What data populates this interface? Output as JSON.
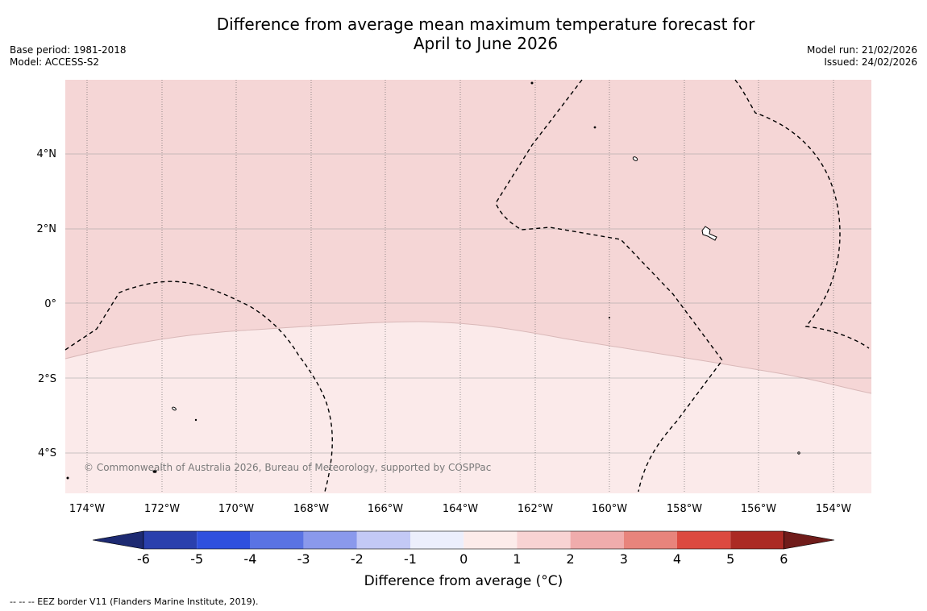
{
  "title_line1": "Difference from average mean maximum temperature forecast for",
  "title_line2": "April to June 2026",
  "meta_left": {
    "base_period": "Base period: 1981-2018",
    "model": "Model: ACCESS-S2"
  },
  "meta_right": {
    "model_run": "Model run: 21/02/2026",
    "issued": "Issued: 24/02/2026"
  },
  "map": {
    "lat_labels": [
      "4°N",
      "2°N",
      "0°",
      "2°S",
      "4°S"
    ],
    "lon_labels": [
      "174°W",
      "172°W",
      "170°W",
      "168°W",
      "166°W",
      "164°W",
      "162°W",
      "160°W",
      "158°W",
      "156°W",
      "154°W"
    ],
    "copyright": "© Commonwealth of Australia 2026, Bureau of Meteorology, supported by COSPPac",
    "colors": {
      "anomaly_1_to_2": "#f5d6d6",
      "anomaly_0_to_1": "#fbeaea",
      "grid": "#999999",
      "eez_line": "#000000"
    }
  },
  "colorbar": {
    "title": "Difference from average (°C)",
    "tick_labels": [
      "-6",
      "-5",
      "-4",
      "-3",
      "-2",
      "-1",
      "0",
      "1",
      "2",
      "3",
      "4",
      "5",
      "6"
    ],
    "bins": [
      {
        "range": "< -6",
        "color": "#1d2a72"
      },
      {
        "range": "-6 to -5",
        "color": "#2a40ad"
      },
      {
        "range": "-5 to -4",
        "color": "#2f50de"
      },
      {
        "range": "-4 to -3",
        "color": "#5a73e3"
      },
      {
        "range": "-3 to -2",
        "color": "#8a99ec"
      },
      {
        "range": "-2 to -1",
        "color": "#c3c9f6"
      },
      {
        "range": "-1 to 0",
        "color": "#eceffc"
      },
      {
        "range": "0 to 1",
        "color": "#fcecea"
      },
      {
        "range": "1 to 2",
        "color": "#f8d3d3"
      },
      {
        "range": "2 to 3",
        "color": "#f0acac"
      },
      {
        "range": "3 to 4",
        "color": "#e8847c"
      },
      {
        "range": "4 to 5",
        "color": "#dc4a40"
      },
      {
        "range": "5 to 6",
        "color": "#ab2a24"
      },
      {
        "range": "> 6",
        "color": "#701c1a"
      }
    ]
  },
  "footer": "--  --  -- EEZ border V11 (Flanders Marine Institute, 2019)."
}
